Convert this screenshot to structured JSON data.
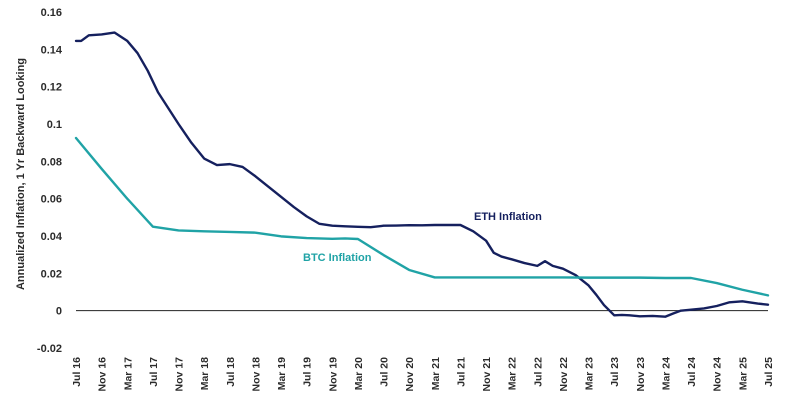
{
  "chart_data": {
    "type": "line",
    "title": "",
    "xlabel": "",
    "ylabel": "Annualized Inflation, 1 Yr Backward Looking",
    "ylim": [
      -0.02,
      0.16
    ],
    "yticks": [
      "0.16",
      "0.14",
      "0.12",
      "0.1",
      "0.08",
      "0.06",
      "0.04",
      "0.02",
      "0",
      "-0.02"
    ],
    "ytick_values": [
      0.16,
      0.14,
      0.12,
      0.1,
      0.08,
      0.06,
      0.04,
      0.02,
      0,
      -0.02
    ],
    "grid": false,
    "legend": "inline labels",
    "categories": [
      "Jul 16",
      "Nov 16",
      "Mar 17",
      "Jul 17",
      "Nov 17",
      "Mar 18",
      "Jul 18",
      "Nov 18",
      "Mar 19",
      "Jul 19",
      "Nov 19",
      "Mar 20",
      "Jul 20",
      "Nov 20",
      "Mar 21",
      "Jul 21",
      "Nov 21",
      "Mar 22",
      "Jul 22",
      "Nov 22",
      "Mar 23",
      "Jul 23",
      "Nov 23",
      "Mar 24",
      "Jul 24",
      "Nov 24",
      "Mar 25",
      "Jul 25"
    ],
    "series": [
      {
        "name": "ETH Inflation",
        "color": "#15205e",
        "x": [
          0,
          0.2,
          0.5,
          1,
          1.5,
          2,
          2.4,
          2.8,
          3.2,
          3.6,
          4,
          4.5,
          5,
          5.5,
          6,
          6.5,
          7,
          7.5,
          8,
          8.5,
          9,
          9.5,
          10,
          10.5,
          11,
          11.5,
          12,
          12.5,
          13,
          13.5,
          14,
          14.5,
          15,
          15.5,
          16,
          16.3,
          16.6,
          17,
          17.5,
          18,
          18.3,
          18.6,
          19,
          19.5,
          20,
          20.3,
          20.6,
          21,
          21.3,
          21.6,
          22,
          22.5,
          23,
          23.3,
          23.6,
          24,
          24.5,
          25,
          25.5,
          26,
          26.3,
          26.6,
          27
        ],
        "values": [
          0.1445,
          0.1445,
          0.1475,
          0.148,
          0.149,
          0.1445,
          0.138,
          0.1285,
          0.117,
          0.1085,
          0.1,
          0.09,
          0.0815,
          0.078,
          0.0785,
          0.077,
          0.072,
          0.0665,
          0.061,
          0.0555,
          0.0505,
          0.0465,
          0.0455,
          0.0452,
          0.0449,
          0.0447,
          0.0455,
          0.0456,
          0.0458,
          0.0457,
          0.0459,
          0.0459,
          0.0459,
          0.0425,
          0.0375,
          0.031,
          0.029,
          0.0275,
          0.0255,
          0.024,
          0.0265,
          0.024,
          0.0225,
          0.019,
          0.0135,
          0.0085,
          0.003,
          -0.0025,
          -0.0023,
          -0.0025,
          -0.003,
          -0.0028,
          -0.0032,
          -0.0015,
          0.0,
          0.0005,
          0.0012,
          0.0025,
          0.0045,
          0.005,
          0.0044,
          0.0038,
          0.0032
        ]
      },
      {
        "name": "BTC Inflation",
        "color": "#20a3a6",
        "x": [
          0,
          1,
          2,
          3,
          4,
          5,
          6,
          7,
          8,
          9,
          10,
          10.5,
          11,
          12,
          13,
          14,
          15,
          16,
          17,
          18,
          19,
          20,
          21,
          22,
          23,
          24,
          25,
          26,
          27
        ],
        "values": [
          0.0925,
          0.076,
          0.06,
          0.045,
          0.043,
          0.0425,
          0.0422,
          0.0418,
          0.0398,
          0.0389,
          0.0385,
          0.0387,
          0.0384,
          0.0298,
          0.0218,
          0.0178,
          0.0178,
          0.0178,
          0.0178,
          0.0178,
          0.0178,
          0.0177,
          0.0177,
          0.0177,
          0.0175,
          0.0175,
          0.0148,
          0.0112,
          0.0082
        ]
      }
    ],
    "labels": {
      "eth": "ETH Inflation",
      "btc": "BTC Inflation"
    }
  }
}
